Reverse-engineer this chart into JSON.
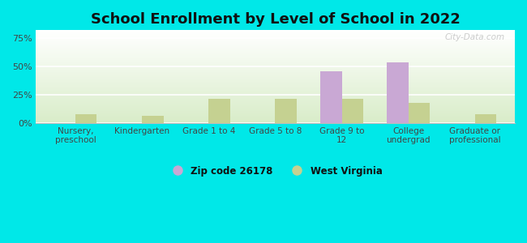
{
  "title": "School Enrollment by Level of School in 2022",
  "categories": [
    "Nursery,\npreschool",
    "Kindergarten",
    "Grade 1 to 4",
    "Grade 5 to 8",
    "Grade 9 to\n12",
    "College\nundergrad",
    "Graduate or\nprofessional"
  ],
  "zip_values": [
    0,
    0,
    0,
    0,
    46,
    54,
    0
  ],
  "wv_values": [
    8,
    7,
    22,
    22,
    22,
    18,
    8
  ],
  "zip_color": "#c9a8d4",
  "wv_color": "#c5d191",
  "background_color": "#00e8e8",
  "plot_bg_top": "#ffffff",
  "plot_bg_bottom": "#d8ecc8",
  "title_fontsize": 13,
  "ylabel_ticks": [
    "0%",
    "25%",
    "50%",
    "75%"
  ],
  "ytick_vals": [
    0,
    25,
    50,
    75
  ],
  "ylim": [
    0,
    82
  ],
  "bar_width": 0.32,
  "legend_labels": [
    "Zip code 26178",
    "West Virginia"
  ],
  "watermark": "City-Data.com"
}
